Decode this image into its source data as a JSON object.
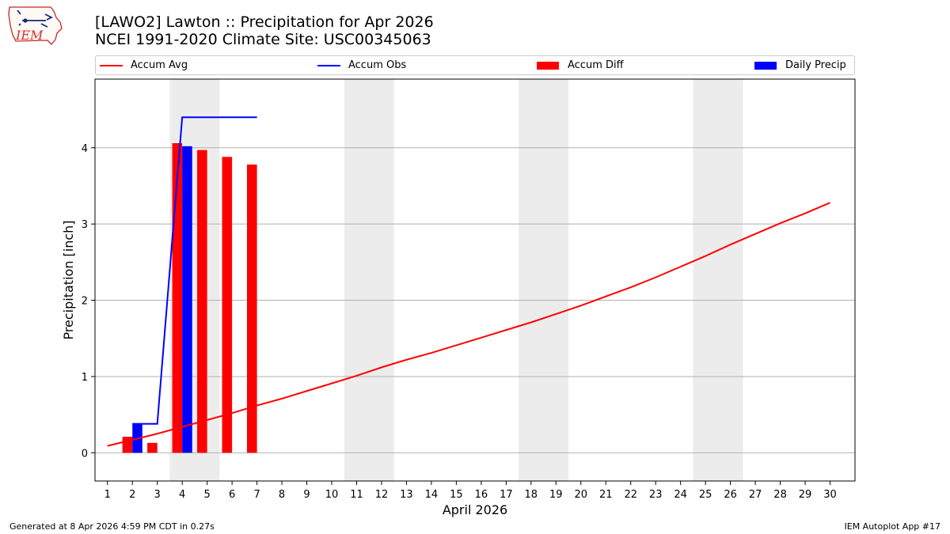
{
  "titles": {
    "line1": "[LAWO2] Lawton :: Precipitation for Apr 2026",
    "line2": "NCEI 1991-2020 Climate Site: USC00345063"
  },
  "logo": {
    "text": "IEM"
  },
  "legend": {
    "accum_avg": "Accum Avg",
    "accum_obs": "Accum Obs",
    "accum_diff": "Accum Diff",
    "daily_precip": "Daily Precip"
  },
  "footer": {
    "left": "Generated at 8 Apr 2026 4:59 PM CDT in 0.27s",
    "right": "IEM Autoplot App #17"
  },
  "colors": {
    "avg": "#ff0000",
    "obs": "#0000ff",
    "diff": "#ff0000",
    "daily": "#0000ff",
    "weekend": "#ececec",
    "grid": "#b0b0b0"
  },
  "chart_data": {
    "type": "bar",
    "title": "[LAWO2] Lawton :: Precipitation for Apr 2026",
    "subtitle": "NCEI 1991-2020 Climate Site: USC00345063",
    "xlabel": "April 2026",
    "ylabel": "Precipitation [inch]",
    "xlim": [
      0.5,
      31
    ],
    "ylim": [
      -0.37,
      4.9
    ],
    "yticks": [
      0,
      1,
      2,
      3,
      4
    ],
    "xticks": [
      1,
      2,
      3,
      4,
      5,
      6,
      7,
      8,
      9,
      10,
      11,
      12,
      13,
      14,
      15,
      16,
      17,
      18,
      19,
      20,
      21,
      22,
      23,
      24,
      25,
      26,
      27,
      28,
      29,
      30
    ],
    "grid": "horizontal",
    "legend_position": "top, above plot",
    "weekend_shading": [
      [
        3.5,
        5.5
      ],
      [
        10.5,
        12.5
      ],
      [
        17.5,
        19.5
      ],
      [
        24.5,
        26.5
      ]
    ],
    "series": [
      {
        "name": "Accum Avg",
        "type": "line",
        "x": [
          1,
          2,
          3,
          4,
          5,
          6,
          7,
          8,
          9,
          10,
          11,
          12,
          13,
          14,
          15,
          16,
          17,
          18,
          19,
          20,
          21,
          22,
          23,
          24,
          25,
          26,
          27,
          28,
          29,
          30
        ],
        "values": [
          0.09,
          0.17,
          0.25,
          0.34,
          0.43,
          0.52,
          0.62,
          0.71,
          0.81,
          0.91,
          1.01,
          1.12,
          1.22,
          1.31,
          1.41,
          1.51,
          1.61,
          1.71,
          1.82,
          1.93,
          2.05,
          2.17,
          2.3,
          2.44,
          2.58,
          2.73,
          2.87,
          3.01,
          3.14,
          3.28
        ]
      },
      {
        "name": "Accum Obs",
        "type": "step-line",
        "x": [
          2,
          3,
          4,
          5,
          6,
          7
        ],
        "values": [
          0.38,
          0.38,
          4.4,
          4.4,
          4.4,
          4.4
        ]
      },
      {
        "name": "Accum Diff",
        "type": "bar",
        "x": [
          2,
          3,
          4,
          5,
          6,
          7
        ],
        "values": [
          0.21,
          0.13,
          4.06,
          3.97,
          3.88,
          3.78
        ]
      },
      {
        "name": "Daily Precip",
        "type": "bar",
        "x": [
          2,
          4
        ],
        "values": [
          0.38,
          4.02
        ]
      }
    ]
  }
}
